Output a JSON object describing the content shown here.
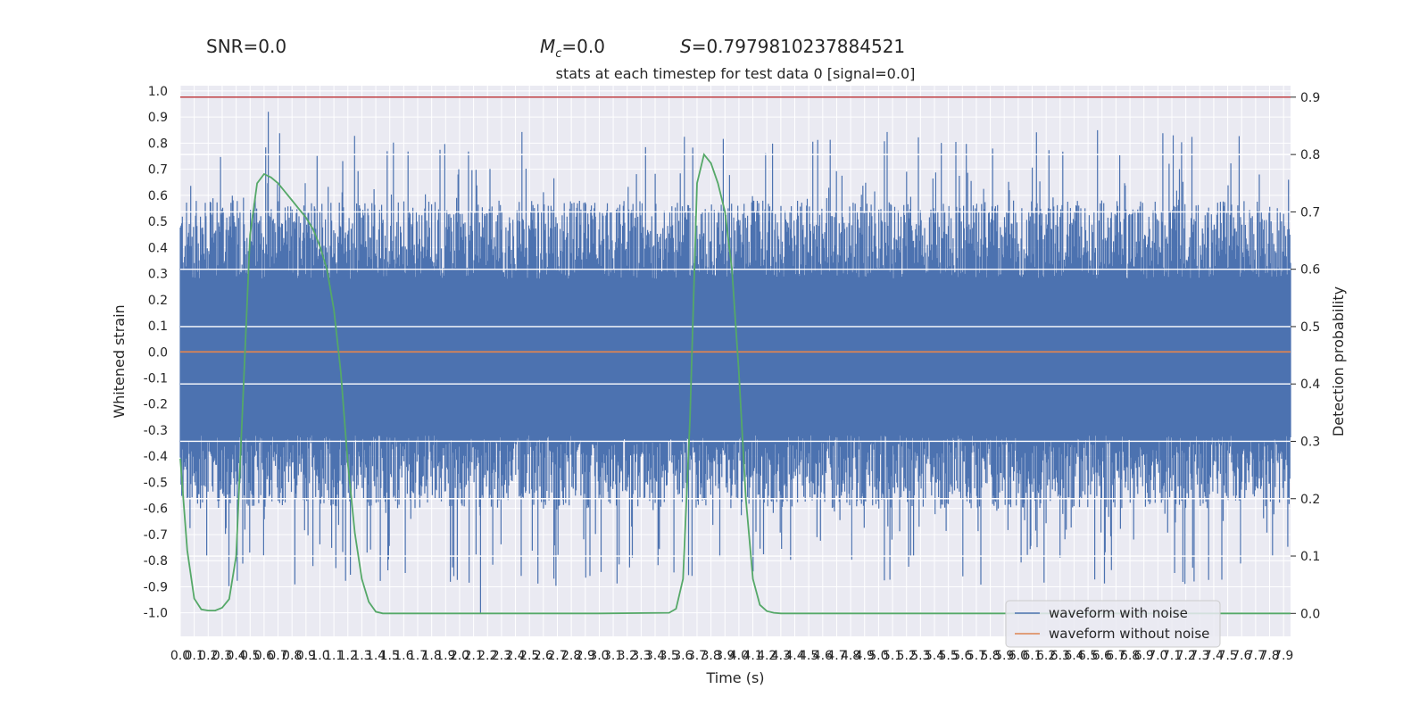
{
  "header": {
    "snr": "SNR=0.0",
    "mc_symbol": "M",
    "mc_sub": "c",
    "mc_value": "=0.0",
    "s_symbol": "S",
    "s_value": "=0.7979810237884521"
  },
  "chart_data": {
    "type": "line",
    "title": "stats at each timestep for test data 0 [signal=0.0]",
    "xlabel": "Time (s)",
    "ylabel_left": "Whitened strain",
    "ylabel_right": "Detection probability",
    "xlim": [
      0.0,
      7.95
    ],
    "ylim_left": [
      -1.09,
      1.02
    ],
    "ylim_right": [
      -0.04,
      0.92
    ],
    "yticks_left": [
      "1.0",
      "0.9",
      "0.8",
      "0.7",
      "0.6",
      "0.5",
      "0.4",
      "0.3",
      "0.2",
      "0.1",
      "0.0",
      "-0.1",
      "-0.2",
      "-0.3",
      "-0.4",
      "-0.5",
      "-0.6",
      "-0.7",
      "-0.8",
      "-0.9",
      "-1.0"
    ],
    "yticks_right": [
      "0.9",
      "0.8",
      "0.7",
      "0.6",
      "0.5",
      "0.4",
      "0.3",
      "0.2",
      "0.1",
      "0.0"
    ],
    "xtick_step": 0.1,
    "xtick_count": 80,
    "grid": true,
    "threshold": {
      "value": 0.9,
      "axis": "right",
      "color": "#c44e52"
    },
    "legend": {
      "placement": "lower right",
      "entries": [
        "waveform with noise",
        "waveform without noise"
      ]
    },
    "series": [
      {
        "name": "waveform with noise",
        "axis": "left",
        "color": "#4c72b0",
        "approx_envelope": {
          "core": [
            -0.33,
            0.3
          ],
          "typical_peaks": [
            -0.6,
            0.6
          ],
          "max": 0.92,
          "min": -1.0
        }
      },
      {
        "name": "waveform without noise",
        "axis": "left",
        "color": "#dd8452",
        "x": [
          0.0,
          7.95
        ],
        "y": [
          0.0,
          0.0
        ]
      },
      {
        "axis": "right",
        "color": "#55a868",
        "x": [
          0.0,
          0.05,
          0.1,
          0.15,
          0.2,
          0.25,
          0.3,
          0.35,
          0.4,
          0.45,
          0.5,
          0.55,
          0.6,
          0.65,
          0.7,
          0.75,
          0.8,
          0.85,
          0.9,
          0.95,
          1.0,
          1.05,
          1.1,
          1.15,
          1.2,
          1.25,
          1.3,
          1.35,
          1.4,
          1.45,
          1.5,
          1.55,
          1.6,
          1.65,
          1.7,
          1.8,
          2.0,
          2.5,
          3.0,
          3.5,
          3.55,
          3.6,
          3.65,
          3.7,
          3.75,
          3.8,
          3.85,
          3.9,
          3.95,
          4.0,
          4.05,
          4.1,
          4.15,
          4.2,
          4.25,
          4.3,
          4.35,
          4.4,
          4.5,
          5.0,
          5.5,
          6.0,
          6.5,
          7.0,
          7.5,
          7.95
        ],
        "y": [
          0.27,
          0.11,
          0.026,
          0.007,
          0.005,
          0.005,
          0.01,
          0.025,
          0.1,
          0.38,
          0.66,
          0.75,
          0.766,
          0.76,
          0.75,
          0.735,
          0.72,
          0.705,
          0.69,
          0.67,
          0.64,
          0.6,
          0.53,
          0.42,
          0.26,
          0.14,
          0.06,
          0.02,
          0.003,
          0.0,
          0.0,
          0.0,
          0.0,
          0.0,
          0.0,
          0.0,
          0.0,
          0.0,
          0.0,
          0.001,
          0.008,
          0.06,
          0.34,
          0.75,
          0.8,
          0.785,
          0.75,
          0.7,
          0.6,
          0.42,
          0.2,
          0.06,
          0.015,
          0.004,
          0.001,
          0.0,
          0.0,
          0.0,
          0.0,
          0.0,
          0.0,
          0.0,
          0.0,
          0.0,
          0.0,
          0.0
        ]
      }
    ]
  }
}
